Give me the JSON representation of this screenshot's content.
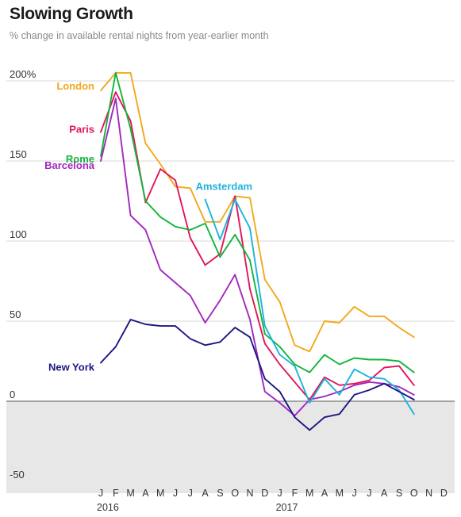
{
  "header": {
    "title": "Slowing Growth",
    "subtitle": "% change in available rental nights from year-earlier month"
  },
  "colors": {
    "London": "#f2a81d",
    "Paris": "#e3145a",
    "Rome": "#12b53c",
    "Barcelona": "#a128be",
    "Amsterdam": "#1fb3dc",
    "New York": "#1c1783",
    "negative_band": "#e7e7e7",
    "gridline": "#d8d8d8",
    "zero_line": "#777777"
  },
  "chart_data": {
    "type": "line",
    "title": "Slowing Growth",
    "subtitle": "% change in available rental nights from year-earlier month",
    "x": [
      "J",
      "F",
      "M",
      "A",
      "M",
      "J",
      "J",
      "A",
      "S",
      "O",
      "N",
      "D",
      "J",
      "F",
      "M",
      "A",
      "M",
      "J",
      "J",
      "A",
      "S",
      "O",
      "N",
      "D"
    ],
    "year_labels": [
      {
        "label": "2016",
        "index": 0
      },
      {
        "label": "2017",
        "index": 12
      }
    ],
    "ylim": [
      -50,
      200
    ],
    "yticks": [
      200,
      150,
      100,
      50,
      0,
      -50
    ],
    "ytick_labels": [
      "200%",
      "150",
      "100",
      "50",
      "0",
      "-50"
    ],
    "grid": true,
    "negative_region_shaded": true,
    "series": [
      {
        "name": "London",
        "label_pos": "left",
        "values": [
          194,
          205,
          205,
          161,
          148,
          134,
          133,
          112,
          112,
          128,
          127,
          76,
          62,
          35,
          31,
          50,
          49,
          59,
          53,
          53,
          46,
          40,
          null,
          null
        ]
      },
      {
        "name": "Paris",
        "label_pos": "left",
        "values": [
          168,
          193,
          175,
          124,
          145,
          138,
          102,
          85,
          92,
          128,
          70,
          36,
          23,
          12,
          1,
          15,
          10,
          11,
          13,
          21,
          22,
          10,
          null,
          null
        ]
      },
      {
        "name": "Rome",
        "label_pos": "left",
        "values": [
          153,
          205,
          170,
          125,
          115,
          109,
          107,
          111,
          90,
          104,
          88,
          42,
          34,
          23,
          18,
          29,
          23,
          27,
          26,
          26,
          25,
          18,
          null,
          null
        ]
      },
      {
        "name": "Barcelona",
        "label_pos": "left",
        "values": [
          150,
          189,
          116,
          107,
          82,
          74,
          66,
          49,
          63,
          79,
          51,
          6,
          -1,
          -9,
          1,
          3,
          6,
          10,
          12,
          11,
          9,
          4,
          null,
          null
        ]
      },
      {
        "name": "Amsterdam",
        "label_pos": "above",
        "values": [
          null,
          null,
          null,
          null,
          null,
          null,
          null,
          126,
          101,
          126,
          108,
          47,
          29,
          22,
          -1,
          14,
          4,
          20,
          15,
          14,
          7,
          -8,
          null,
          null
        ]
      },
      {
        "name": "New York",
        "label_pos": "left",
        "values": [
          24,
          34,
          51,
          48,
          47,
          47,
          39,
          35,
          37,
          46,
          40,
          14,
          6,
          -10,
          -18,
          -10,
          -8,
          4,
          7,
          11,
          6,
          1,
          null,
          null
        ]
      }
    ]
  }
}
